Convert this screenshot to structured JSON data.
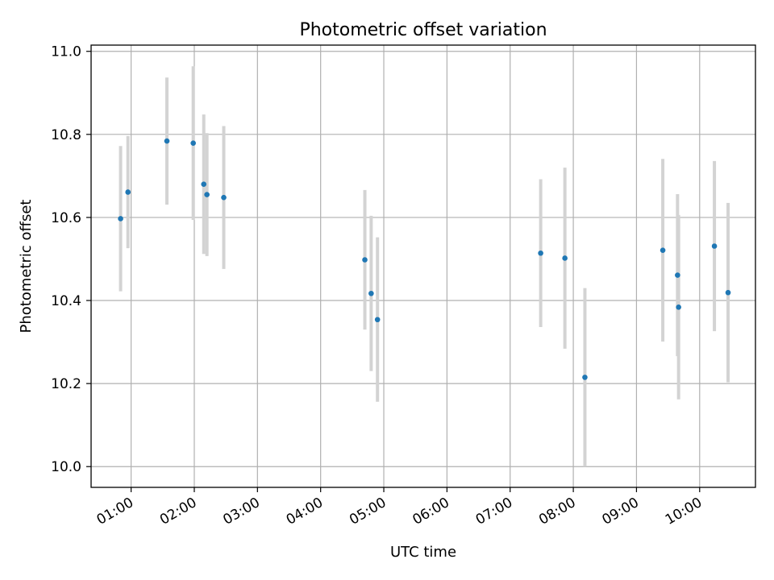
{
  "chart_data": {
    "type": "scatter",
    "title": "Photometric offset variation",
    "xlabel": "UTC time",
    "ylabel": "Photometric offset",
    "x_ticks": [
      "01:00",
      "02:00",
      "03:00",
      "04:00",
      "05:00",
      "06:00",
      "07:00",
      "08:00",
      "09:00",
      "10:00"
    ],
    "y_ticks": [
      "10.0",
      "10.2",
      "10.4",
      "10.6",
      "10.8",
      "11.0"
    ],
    "xlim": [
      "00:22",
      "10:53"
    ],
    "ylim": [
      9.95,
      11.015
    ],
    "grid": true,
    "colors": {
      "points": "#1f77b4",
      "error_bars": "#d3d3d3",
      "grid": "#b0b0b0"
    },
    "points": [
      {
        "time": "00:50",
        "y": 10.597,
        "err": 0.175
      },
      {
        "time": "00:57",
        "y": 10.661,
        "err": 0.135
      },
      {
        "time": "01:34",
        "y": 10.784,
        "err": 0.153
      },
      {
        "time": "01:59",
        "y": 10.779,
        "err": 0.185
      },
      {
        "time": "02:09",
        "y": 10.68,
        "err": 0.168
      },
      {
        "time": "02:12",
        "y": 10.655,
        "err": 0.148
      },
      {
        "time": "02:28",
        "y": 10.648,
        "err": 0.172
      },
      {
        "time": "04:42",
        "y": 10.498,
        "err": 0.168
      },
      {
        "time": "04:48",
        "y": 10.417,
        "err": 0.187
      },
      {
        "time": "04:54",
        "y": 10.354,
        "err": 0.198
      },
      {
        "time": "07:29",
        "y": 10.514,
        "err": 0.178
      },
      {
        "time": "07:52",
        "y": 10.502,
        "err": 0.218
      },
      {
        "time": "08:11",
        "y": 10.215,
        "err": 0.215
      },
      {
        "time": "09:25",
        "y": 10.521,
        "err": 0.22
      },
      {
        "time": "09:39",
        "y": 10.461,
        "err": 0.195
      },
      {
        "time": "09:40",
        "y": 10.384,
        "err": 0.222
      },
      {
        "time": "10:14",
        "y": 10.531,
        "err": 0.205
      },
      {
        "time": "10:27",
        "y": 10.419,
        "err": 0.216
      }
    ]
  }
}
